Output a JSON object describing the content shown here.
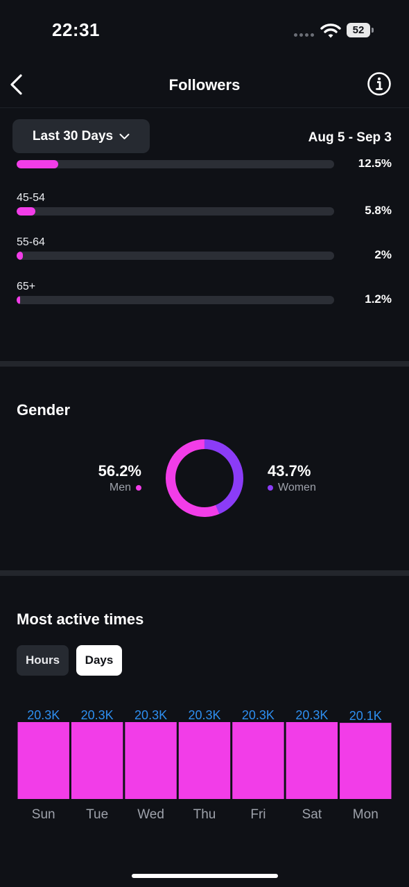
{
  "status_bar": {
    "time": "22:31",
    "battery": "52"
  },
  "header": {
    "title": "Followers",
    "back_icon": "chevron-left-icon",
    "info_icon": "info-icon"
  },
  "filter": {
    "range_label": "Last 30 Days",
    "date_range": "Aug 5 - Sep 3"
  },
  "age": {
    "partial_row": {
      "pct": "12.5%",
      "fill": 0.13
    },
    "rows": [
      {
        "label": "45-54",
        "pct": "5.8%",
        "fill": 0.058
      },
      {
        "label": "55-64",
        "pct": "2%",
        "fill": 0.02
      },
      {
        "label": "65+",
        "pct": "1.2%",
        "fill": 0.012
      }
    ]
  },
  "gender": {
    "title": "Gender",
    "men": {
      "value": "56.2%",
      "label": "Men",
      "share": 0.562,
      "color": "#f23de8"
    },
    "women": {
      "value": "43.7%",
      "label": "Women",
      "share": 0.437,
      "color": "#8b3cf7"
    }
  },
  "active_times": {
    "title": "Most active times",
    "tabs": {
      "hours": "Hours",
      "days": "Days",
      "selected": "Days"
    }
  },
  "chart_data": {
    "type": "bar",
    "categories": [
      "Sun",
      "Tue",
      "Wed",
      "Thu",
      "Fri",
      "Sat",
      "Mon"
    ],
    "values": [
      20.3,
      20.3,
      20.3,
      20.3,
      20.3,
      20.3,
      20.1
    ],
    "data_labels": [
      "20.3K",
      "20.3K",
      "20.3K",
      "20.3K",
      "20.3K",
      "20.3K",
      "20.1K"
    ],
    "bar_color": "#f23de8",
    "label_color": "#2e8ff0"
  }
}
